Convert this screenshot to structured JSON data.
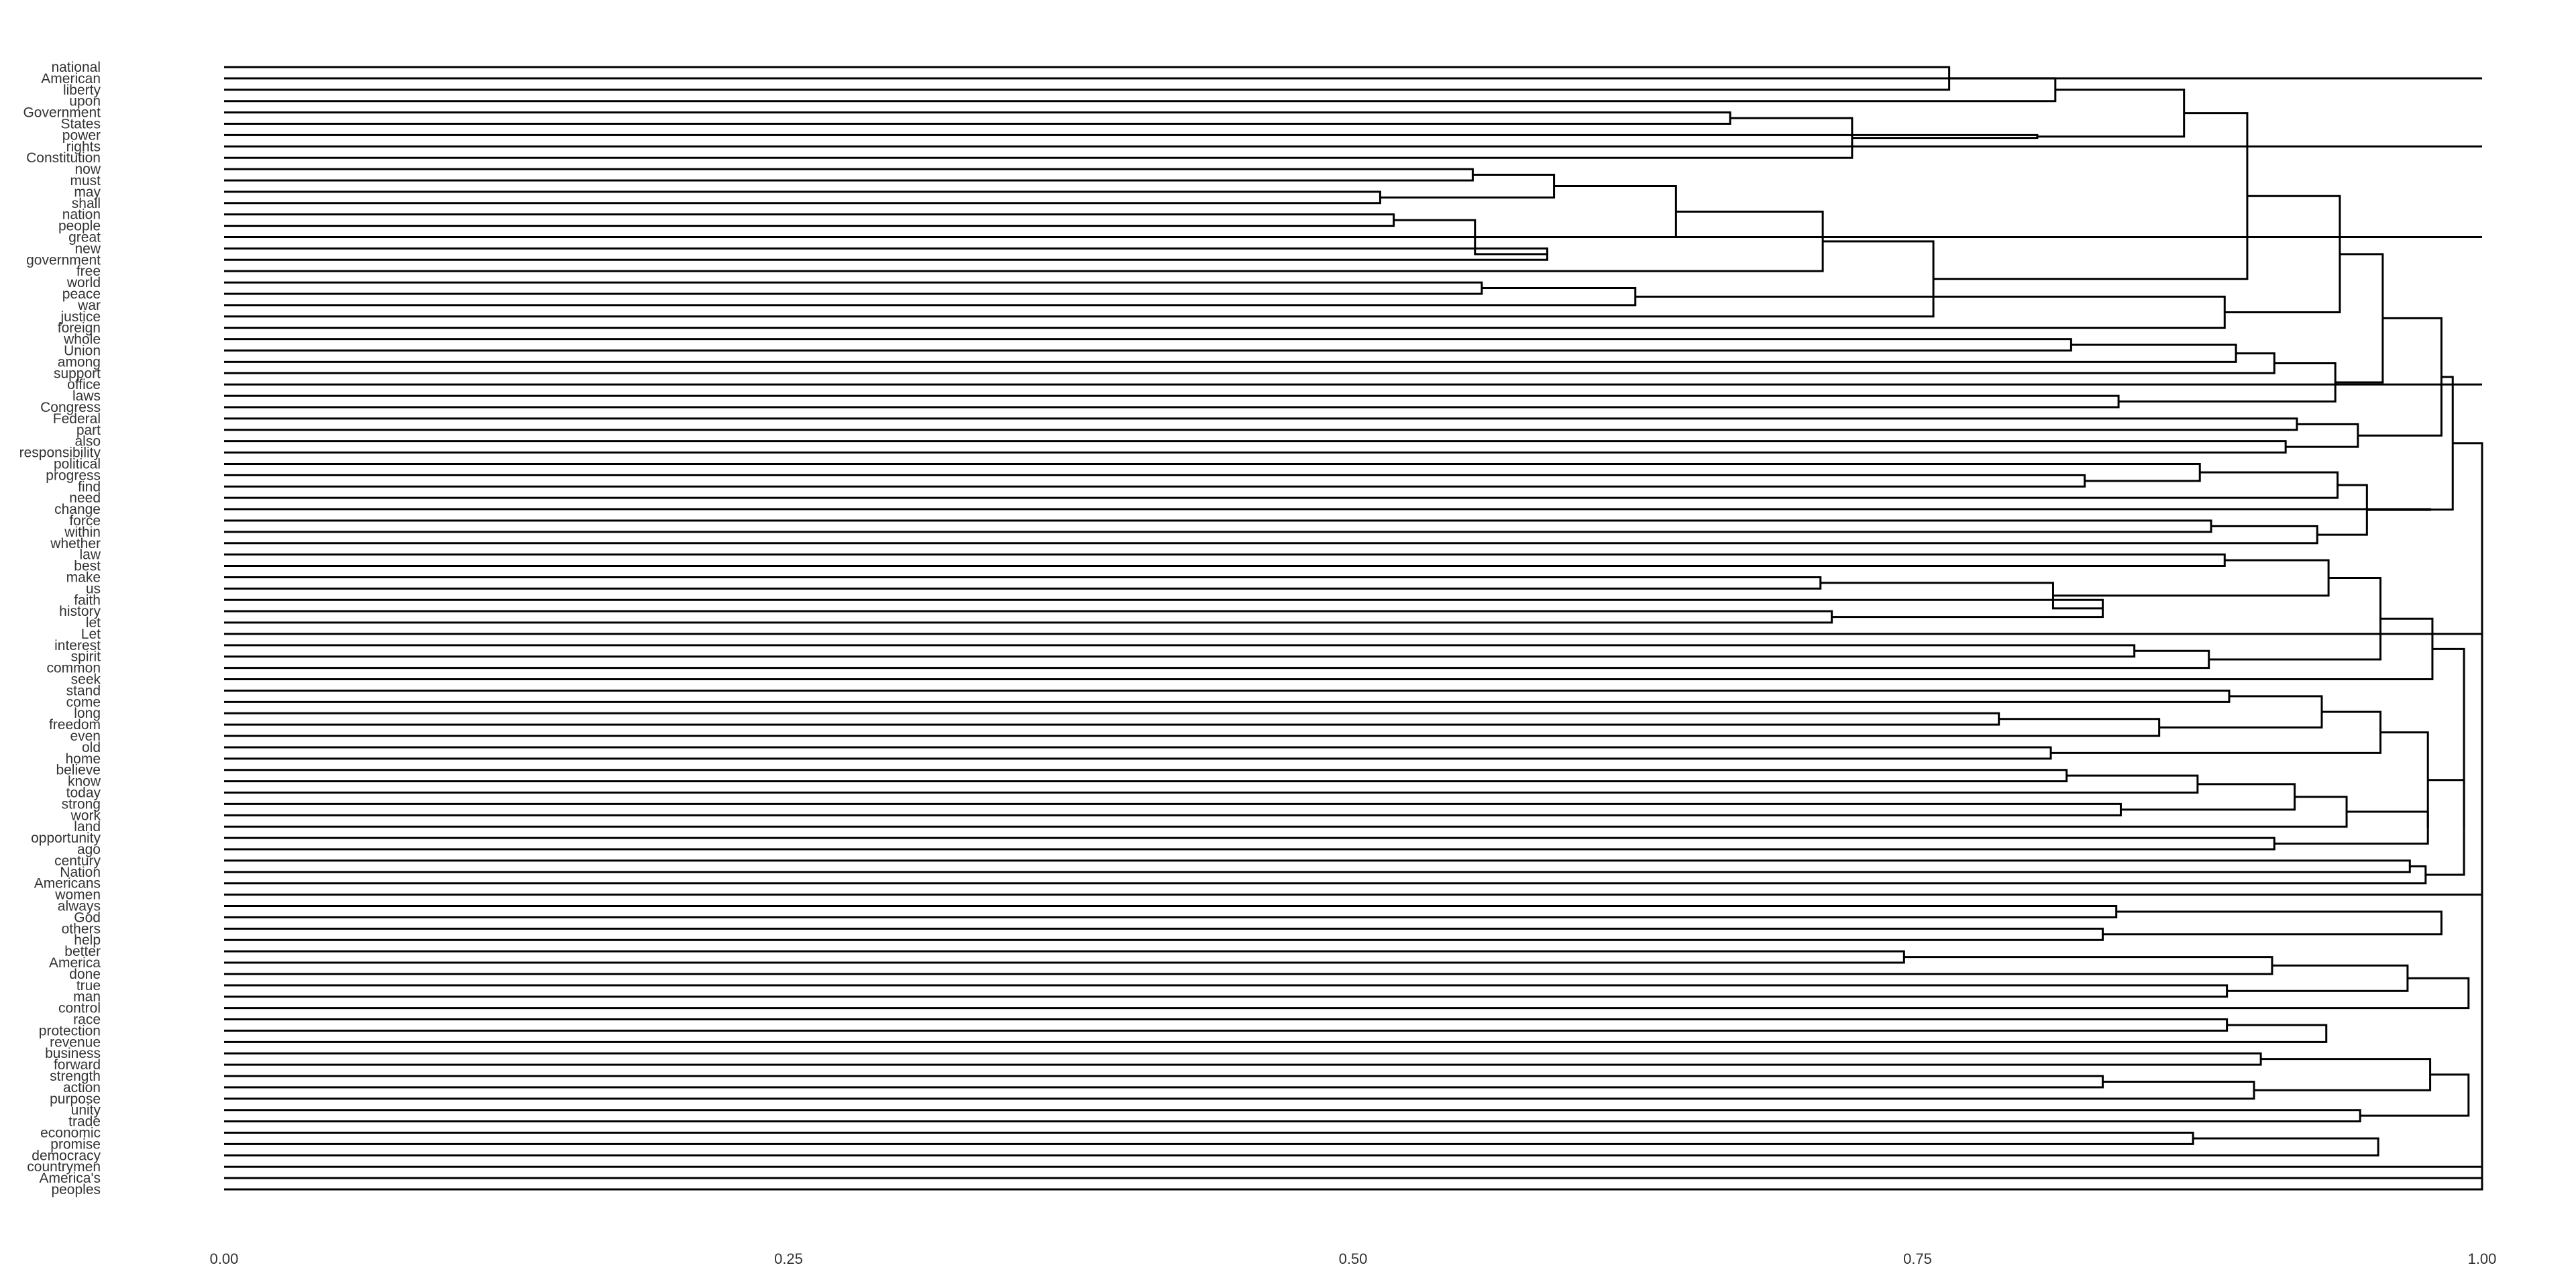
{
  "chart_data": {
    "type": "dendrogram",
    "orientation": "horizontal",
    "grid": false,
    "xlim": [
      0,
      1
    ],
    "x_ticks": [
      0,
      0.25,
      0.5,
      0.75,
      1
    ],
    "x_tick_labels": [
      "0.00",
      "0.25",
      "0.50",
      "0.75",
      "1.00"
    ],
    "leaves": [
      "national",
      "American",
      "liberty",
      "upon",
      "Government",
      "States",
      "power",
      "rights",
      "Constitution",
      "now",
      "must",
      "may",
      "shall",
      "nation",
      "people",
      "great",
      "new",
      "government",
      "free",
      "world",
      "peace",
      "war",
      "justice",
      "foreign",
      "whole",
      "Union",
      "among",
      "support",
      "office",
      "laws",
      "Congress",
      "Federal",
      "part",
      "also",
      "responsibility",
      "political",
      "progress",
      "find",
      "need",
      "change",
      "force",
      "within",
      "whether",
      "law",
      "best",
      "make",
      "us",
      "faith",
      "history",
      "let",
      "Let",
      "interest",
      "spirit",
      "common",
      "seek",
      "stand",
      "come",
      "long",
      "freedom",
      "even",
      "old",
      "home",
      "believe",
      "know",
      "today",
      "strong",
      "work",
      "land",
      "opportunity",
      "ago",
      "century",
      "Nation",
      "Americans",
      "women",
      "always",
      "God",
      "others",
      "help",
      "better",
      "America",
      "done",
      "true",
      "man",
      "control",
      "race",
      "protection",
      "revenue",
      "business",
      "forward",
      "strength",
      "action",
      "purpose",
      "unity",
      "trade",
      "economic",
      "promise",
      "democracy",
      "countrymen",
      "America's",
      "peoples"
    ],
    "merges": [
      {
        "a": "national",
        "b": "liberty",
        "height": 0.764
      },
      {
        "a": "Government",
        "b": "States",
        "height": 0.667
      },
      {
        "a": "may",
        "b": "shall",
        "height": 0.512
      },
      {
        "a": "nation",
        "b": "people",
        "height": 0.518
      },
      {
        "a": "now",
        "b": "must",
        "height": 0.553
      },
      {
        "a": "world",
        "b": "peace",
        "height": 0.557
      },
      {
        "a": "new",
        "b": "government",
        "height": 0.586
      },
      {
        "a": "make",
        "b": "us",
        "height": 0.707
      },
      {
        "a": "history",
        "b": "let",
        "height": 0.712
      },
      {
        "a": "long",
        "b": "freedom",
        "height": 0.786
      },
      {
        "a": "better",
        "b": "America",
        "height": 0.744
      },
      {
        "a": "whole",
        "b": "Union",
        "height": 0.818
      },
      {
        "a": "laws",
        "b": "Congress",
        "height": 0.839
      },
      {
        "a": "progress",
        "b": "find",
        "height": 0.824
      },
      {
        "a": "old",
        "b": "home",
        "height": 0.809
      },
      {
        "a": "believe",
        "b": "know",
        "height": 0.816
      },
      {
        "a": "strong",
        "b": "work",
        "height": 0.84
      },
      {
        "a": "always",
        "b": "God",
        "height": 0.838
      },
      {
        "a": "others",
        "b": "help",
        "height": 0.832
      },
      {
        "a": "strength",
        "b": "action",
        "height": 0.832
      },
      {
        "a": "interest",
        "b": "spirit",
        "height": 0.846
      },
      {
        "a": "faith",
        "b": "history",
        "height": 0.832
      },
      {
        "a": "nation",
        "b": "new",
        "height": 0.554
      },
      {
        "a": "now",
        "b": "may",
        "height": 0.589
      },
      {
        "a": "world",
        "b": "war",
        "height": 0.625
      },
      {
        "a": "Government",
        "b": "Constitution",
        "height": 0.721
      },
      {
        "a": "now",
        "b": "nation",
        "height": 0.643
      },
      {
        "a": "now",
        "b": "free",
        "height": 0.708
      },
      {
        "a": "now",
        "b": "justice",
        "height": 0.757
      },
      {
        "a": "national",
        "b": "upon",
        "height": 0.811
      },
      {
        "a": "Government",
        "b": "power",
        "height": 0.803
      },
      {
        "a": "national",
        "b": "Government",
        "height": 0.868
      },
      {
        "a": "national",
        "b": "now",
        "height": 0.896
      },
      {
        "a": "world",
        "b": "foreign",
        "height": 0.886
      },
      {
        "a": "whole",
        "b": "among",
        "height": 0.891
      },
      {
        "a": "whole",
        "b": "support",
        "height": 0.908
      },
      {
        "a": "laws",
        "b": "Congress",
        "height": 0.873
      },
      {
        "a": "whole",
        "b": "laws",
        "height": 0.935
      },
      {
        "a": "Federal",
        "b": "part",
        "height": 0.918
      },
      {
        "a": "also",
        "b": "responsibility",
        "height": 0.913
      },
      {
        "a": "Federal",
        "b": "also",
        "height": 0.945
      },
      {
        "a": "national",
        "b": "world",
        "height": 0.937
      },
      {
        "a": "national",
        "b": "whole",
        "height": 0.956
      },
      {
        "a": "national",
        "b": "Federal",
        "height": 0.982
      },
      {
        "a": "political",
        "b": "progress",
        "height": 0.875
      },
      {
        "a": "political",
        "b": "need",
        "height": 0.936
      },
      {
        "a": "force",
        "b": "within",
        "height": 0.88
      },
      {
        "a": "force",
        "b": "whether",
        "height": 0.927
      },
      {
        "a": "political",
        "b": "force",
        "height": 0.949
      },
      {
        "a": "political",
        "b": "change",
        "height": 0.977
      },
      {
        "a": "national",
        "b": "political",
        "height": 0.987
      },
      {
        "a": "make",
        "b": "faith",
        "height": 0.81
      },
      {
        "a": "make",
        "b": "history",
        "height": 0.864
      },
      {
        "a": "law",
        "b": "best",
        "height": 0.886
      },
      {
        "a": "law",
        "b": "make",
        "height": 0.932
      },
      {
        "a": "interest",
        "b": "common",
        "height": 0.879
      },
      {
        "a": "law",
        "b": "interest",
        "height": 0.955
      },
      {
        "a": "law",
        "b": "seek",
        "height": 0.978
      },
      {
        "a": "stand",
        "b": "come",
        "height": 0.888
      },
      {
        "a": "long",
        "b": "even",
        "height": 0.857
      },
      {
        "a": "stand",
        "b": "long",
        "height": 0.929
      },
      {
        "a": "stand",
        "b": "old",
        "height": 0.955
      },
      {
        "a": "believe",
        "b": "today",
        "height": 0.874
      },
      {
        "a": "believe",
        "b": "strong",
        "height": 0.917
      },
      {
        "a": "believe",
        "b": "land",
        "height": 0.94
      },
      {
        "a": "opportunity",
        "b": "ago",
        "height": 0.908
      },
      {
        "a": "believe",
        "b": "opportunity",
        "height": 0.976
      },
      {
        "a": "stand",
        "b": "believe",
        "height": 0.976
      },
      {
        "a": "century",
        "b": "Nation",
        "height": 0.968
      },
      {
        "a": "century",
        "b": "Americans",
        "height": 0.975
      },
      {
        "a": "stand",
        "b": "century",
        "height": 0.992
      },
      {
        "a": "law",
        "b": "stand",
        "height": 0.992
      },
      {
        "a": "always",
        "b": "others",
        "height": 0.982
      },
      {
        "a": "better",
        "b": "done",
        "height": 0.907
      },
      {
        "a": "true",
        "b": "man",
        "height": 0.887
      },
      {
        "a": "better",
        "b": "true",
        "height": 0.967
      },
      {
        "a": "better",
        "b": "control",
        "height": 0.994
      },
      {
        "a": "race",
        "b": "protection",
        "height": 0.887
      },
      {
        "a": "race",
        "b": "revenue",
        "height": 0.931
      },
      {
        "a": "business",
        "b": "forward",
        "height": 0.902
      },
      {
        "a": "strength",
        "b": "purpose",
        "height": 0.899
      },
      {
        "a": "business",
        "b": "strength",
        "height": 0.977
      },
      {
        "a": "unity",
        "b": "trade",
        "height": 0.946
      },
      {
        "a": "business",
        "b": "unity",
        "height": 0.994
      },
      {
        "a": "economic",
        "b": "promise",
        "height": 0.872
      },
      {
        "a": "economic",
        "b": "democracy",
        "height": 0.954
      },
      {
        "a": "national",
        "b": "peoples",
        "height": 1.0
      }
    ]
  }
}
